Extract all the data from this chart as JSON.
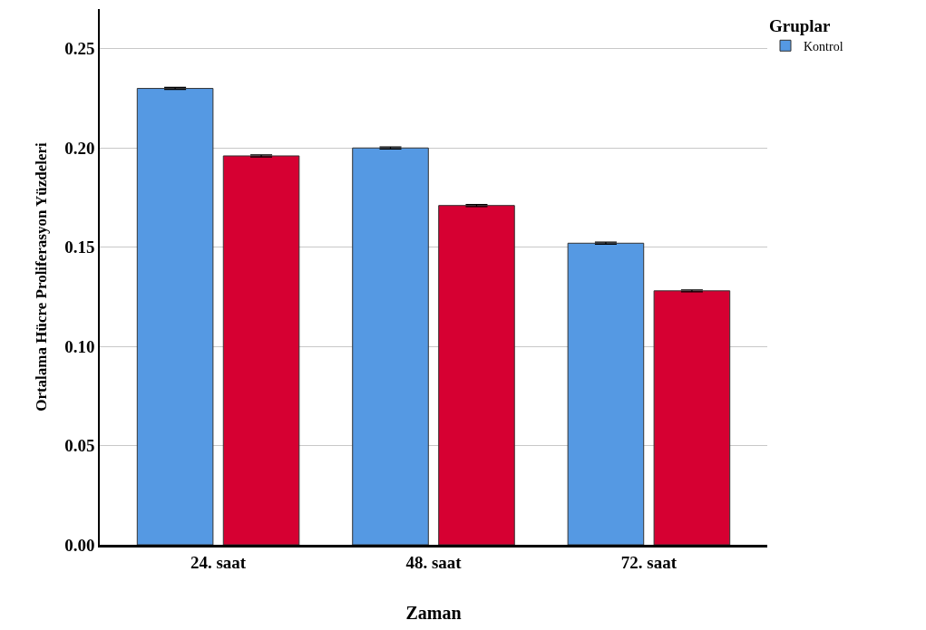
{
  "chart_data": {
    "type": "bar",
    "xlabel": "Zaman",
    "ylabel": "Ortalama Hücre Proliferasyon Yüzdeleri",
    "legend_title": "Gruplar",
    "categories": [
      "24. saat",
      "48. saat",
      "72. saat"
    ],
    "series": [
      {
        "name": "Kontrol",
        "color": "#5599e3",
        "values": [
          0.23,
          0.2,
          0.152
        ],
        "errors": [
          0.0005,
          0.0005,
          0.0005
        ]
      },
      {
        "color": "#d60032",
        "values": [
          0.196,
          0.171,
          0.128
        ],
        "errors": [
          0.0005,
          0.0005,
          0.0005
        ]
      }
    ],
    "ylim": [
      0,
      0.27
    ],
    "yticks": [
      {
        "value": 0,
        "label": "0.00"
      },
      {
        "value": 0.05,
        "label": "0.05"
      },
      {
        "value": 0.1,
        "label": "0.10"
      },
      {
        "value": 0.15,
        "label": "0.15"
      },
      {
        "value": 0.2,
        "label": "0.20"
      },
      {
        "value": 0.25,
        "label": "0.25"
      }
    ],
    "grid": "y",
    "legend": "top right"
  }
}
